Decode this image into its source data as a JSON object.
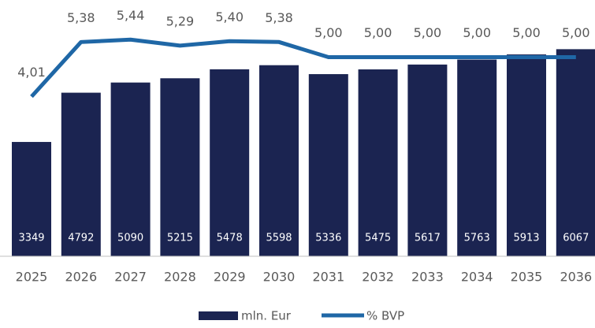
{
  "chart_data": {
    "type": "bar+line",
    "categories": [
      "2025",
      "2026",
      "2027",
      "2028",
      "2029",
      "2030",
      "2031",
      "2032",
      "2033",
      "2034",
      "2035",
      "2036"
    ],
    "series": [
      {
        "name": "mln. Eur",
        "type": "bar",
        "color": "#1b2451",
        "values": [
          3349,
          4792,
          5090,
          5215,
          5478,
          5598,
          5336,
          5475,
          5617,
          5763,
          5913,
          6067
        ]
      },
      {
        "name": "% BVP",
        "type": "line",
        "axis": "y2",
        "color": "#1f67a6",
        "values": [
          4.01,
          5.38,
          5.44,
          5.29,
          5.4,
          5.38,
          5.0,
          5.0,
          5.0,
          5.0,
          5.0,
          5.0
        ],
        "value_labels": [
          "4,01",
          "5,38",
          "5,44",
          "5,29",
          "5,40",
          "5,38",
          "5,00",
          "5,00",
          "5,00",
          "5,00",
          "5,00",
          "5,00"
        ]
      }
    ],
    "ylim": [
      0,
      7000
    ],
    "y2lim": [
      0,
      6
    ],
    "legend": "bottom"
  }
}
